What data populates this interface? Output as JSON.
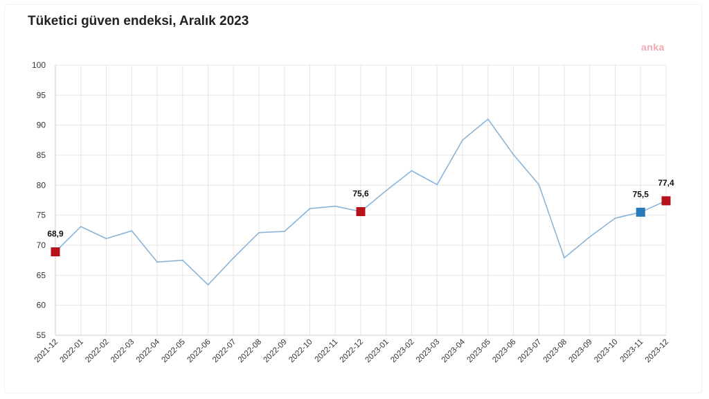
{
  "title": "Tüketici güven endeksi, Aralık 2023",
  "logo_text": "anka",
  "chart_data": {
    "type": "line",
    "title": "Tüketici güven endeksi, Aralık 2023",
    "xlabel": "",
    "ylabel": "",
    "ylim": [
      55,
      100
    ],
    "yticks": [
      55,
      60,
      65,
      70,
      75,
      80,
      85,
      90,
      95,
      100
    ],
    "grid": true,
    "categories": [
      "2021-12",
      "2022-01",
      "2022-02",
      "2022-03",
      "2022-04",
      "2022-05",
      "2022-06",
      "2022-07",
      "2022-08",
      "2022-09",
      "2022-10",
      "2022-11",
      "2022-12",
      "2023-01",
      "2023-02",
      "2023-03",
      "2023-04",
      "2023-05",
      "2023-06",
      "2023-07",
      "2023-08",
      "2023-09",
      "2023-10",
      "2023-11",
      "2023-12"
    ],
    "series": [
      {
        "values": [
          68.9,
          73.1,
          71.1,
          72.4,
          67.2,
          67.5,
          63.4,
          67.9,
          72.1,
          72.3,
          76.1,
          76.5,
          75.6,
          79.1,
          82.4,
          80.1,
          87.5,
          91.0,
          85.1,
          80.1,
          67.9,
          71.4,
          74.5,
          75.5,
          77.4
        ],
        "color": "#8ab4d8"
      }
    ],
    "markers": [
      {
        "category": "2021-12",
        "value": 68.9,
        "label": "68,9",
        "color": "#b5121b"
      },
      {
        "category": "2022-12",
        "value": 75.6,
        "label": "75,6",
        "color": "#b5121b"
      },
      {
        "category": "2023-11",
        "value": 75.5,
        "label": "75,5",
        "color": "#2a7ab8"
      },
      {
        "category": "2023-12",
        "value": 77.4,
        "label": "77,4",
        "color": "#b5121b"
      }
    ]
  }
}
